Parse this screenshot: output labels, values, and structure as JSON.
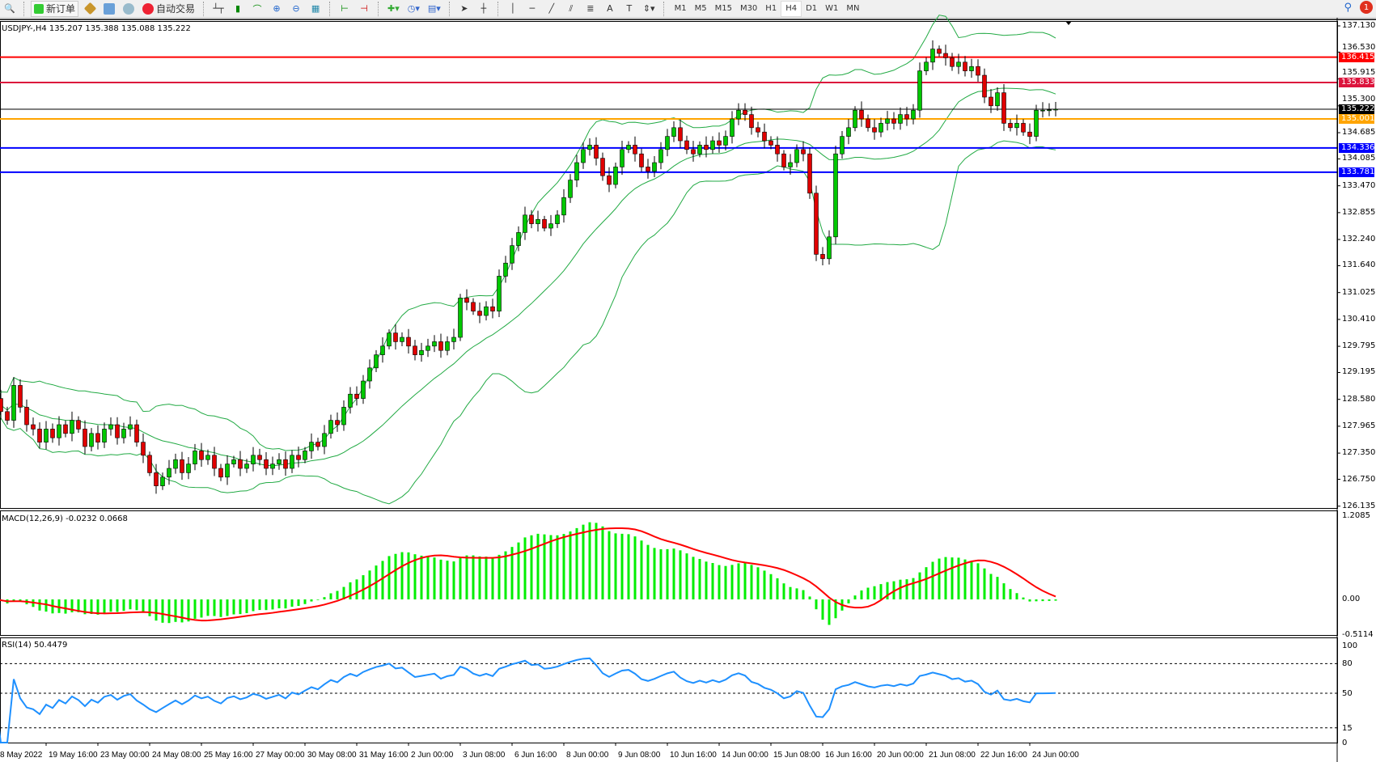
{
  "toolbar": {
    "new_order": "新订单",
    "auto_trading": "自动交易",
    "timeframes": [
      "M1",
      "M5",
      "M15",
      "M30",
      "H1",
      "H4",
      "D1",
      "W1",
      "MN"
    ],
    "active_timeframe": "H4",
    "notification_count": "1"
  },
  "chart": {
    "header": "USDJPY-,H4  135.207 135.388 135.088 135.222",
    "symbol": "USDJPY-",
    "timeframe": "H4",
    "ohlc": {
      "open": 135.207,
      "high": 135.388,
      "low": 135.088,
      "close": 135.222
    },
    "price_axis": [
      "137.130",
      "136.530",
      "135.915",
      "135.300",
      "134.685",
      "134.085",
      "133.470",
      "132.855",
      "132.240",
      "131.640",
      "131.025",
      "130.410",
      "129.795",
      "129.195",
      "128.580",
      "127.965",
      "127.350",
      "126.750",
      "126.135"
    ],
    "price_range": [
      126.135,
      137.13
    ],
    "lines": [
      {
        "label": "136.415",
        "price": 136.415,
        "color": "#ff0000"
      },
      {
        "label": "135.833",
        "price": 135.833,
        "color": "#dc143c"
      },
      {
        "label": "135.222",
        "price": 135.222,
        "color": "#000000"
      },
      {
        "label": "135.001",
        "price": 135.001,
        "color": "#ffa500"
      },
      {
        "label": "134.336",
        "price": 134.336,
        "color": "#0000ff"
      },
      {
        "label": "133.781",
        "price": 133.781,
        "color": "#0000ff"
      }
    ],
    "closes": [
      128.6,
      128.3,
      128.1,
      128.9,
      128.4,
      128.0,
      127.9,
      127.6,
      127.9,
      127.7,
      128.0,
      127.8,
      128.1,
      127.9,
      127.5,
      127.8,
      127.6,
      127.9,
      128.0,
      127.7,
      127.9,
      128.0,
      127.6,
      127.3,
      126.9,
      126.6,
      126.8,
      127.0,
      127.2,
      126.9,
      127.1,
      127.4,
      127.2,
      127.3,
      127.0,
      126.8,
      127.1,
      127.2,
      127.0,
      127.1,
      127.3,
      127.2,
      127.0,
      127.1,
      127.2,
      127.0,
      127.3,
      127.2,
      127.4,
      127.6,
      127.5,
      127.8,
      128.1,
      128.0,
      128.4,
      128.7,
      128.6,
      129.0,
      129.3,
      129.6,
      129.8,
      130.1,
      129.9,
      130.0,
      129.8,
      129.6,
      129.7,
      129.8,
      129.9,
      129.7,
      129.9,
      130.0,
      130.9,
      130.8,
      130.6,
      130.5,
      130.7,
      130.6,
      131.4,
      131.7,
      132.1,
      132.4,
      132.8,
      132.6,
      132.7,
      132.5,
      132.6,
      132.8,
      133.2,
      133.6,
      134.0,
      134.3,
      134.4,
      134.1,
      133.7,
      133.5,
      133.9,
      134.3,
      134.4,
      134.2,
      133.9,
      133.8,
      134.0,
      134.3,
      134.6,
      134.8,
      134.5,
      134.3,
      134.2,
      134.4,
      134.3,
      134.5,
      134.4,
      134.6,
      135.0,
      135.2,
      135.1,
      134.8,
      134.7,
      134.5,
      134.4,
      134.2,
      133.9,
      134.0,
      134.3,
      134.2,
      133.3,
      131.9,
      131.8,
      132.3,
      134.2,
      134.6,
      134.8,
      135.2,
      135.0,
      134.8,
      134.7,
      134.9,
      135.0,
      134.9,
      135.1,
      135.0,
      135.2,
      136.1,
      136.3,
      136.6,
      136.5,
      136.4,
      136.2,
      136.3,
      136.1,
      136.2,
      136.0,
      135.5,
      135.3,
      135.6,
      134.9,
      134.8,
      134.9,
      134.7,
      134.6,
      135.2,
      135.2,
      135.207,
      135.222
    ],
    "colors": {
      "bull": "#00c800",
      "bear": "#e00000",
      "bands": "#22aa44"
    },
    "indicator": "Bollinger Bands"
  },
  "macd": {
    "header": "MACD(12,26,9) -0.0232 0.0668",
    "axis": [
      "1.2085",
      "0.00",
      "-0.5114"
    ],
    "hist_color": "#00ee00",
    "signal_color": "#ff0000"
  },
  "rsi": {
    "header": "RSI(14) 50.4479",
    "axis": [
      "100",
      "80",
      "50",
      "15",
      "0"
    ],
    "levels": [
      80,
      50,
      15
    ],
    "line_color": "#1e90ff"
  },
  "dates": [
    "8 May 2022",
    "19 May 16:00",
    "23 May 00:00",
    "24 May 08:00",
    "25 May 16:00",
    "27 May 00:00",
    "30 May 08:00",
    "31 May 16:00",
    "2 Jun 00:00",
    "3 Jun 08:00",
    "6 Jun 16:00",
    "8 Jun 00:00",
    "9 Jun 08:00",
    "10 Jun 16:00",
    "14 Jun 00:00",
    "15 Jun 08:00",
    "16 Jun 16:00",
    "20 Jun 00:00",
    "21 Jun 08:00",
    "22 Jun 16:00",
    "24 Jun 00:00"
  ]
}
